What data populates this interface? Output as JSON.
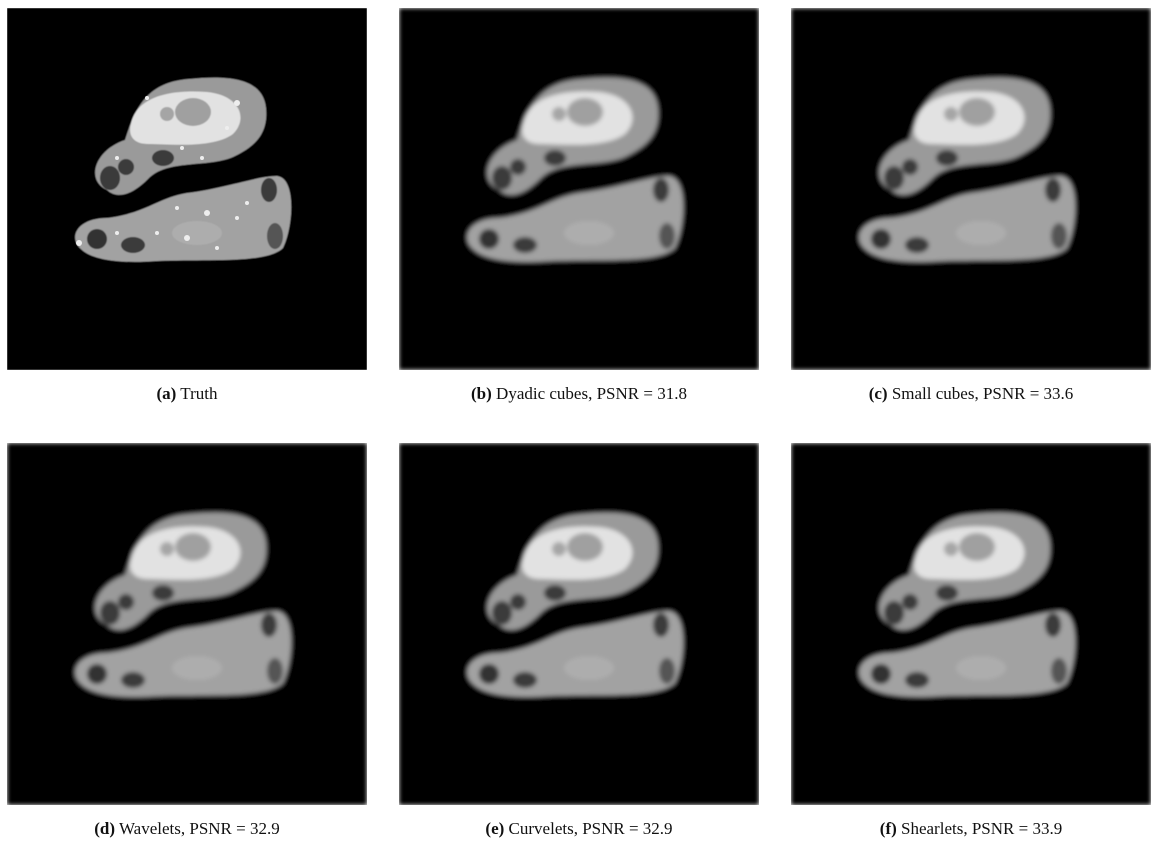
{
  "panels": [
    {
      "label": "(a)",
      "caption": "Truth"
    },
    {
      "label": "(b)",
      "caption": "Dyadic cubes, PSNR = 31.8"
    },
    {
      "label": "(c)",
      "caption": "Small cubes, PSNR = 33.6"
    },
    {
      "label": "(d)",
      "caption": "Wavelets, PSNR = 32.9"
    },
    {
      "label": "(e)",
      "caption": "Curvelets, PSNR = 32.9"
    },
    {
      "label": "(f)",
      "caption": "Shearlets, PSNR = 33.9"
    }
  ]
}
